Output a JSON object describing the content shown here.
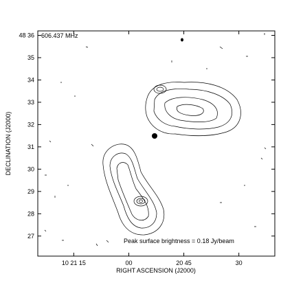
{
  "chart_data": {
    "type": "contour",
    "title": "606.437 MHz",
    "x_label": "RIGHT ASCENSION (J2000)",
    "y_label": "DECLINATION (J2000)",
    "annotation": "Peak surface brightness = 0.18 Jy/beam",
    "xlim": [
      84.8,
      20.2
    ],
    "xticks": [
      {
        "value": 75,
        "label": "10 21 15"
      },
      {
        "value": 60,
        "label": "00"
      },
      {
        "value": 45,
        "label": "20 45"
      },
      30
    ],
    "ylim": [
      26.1,
      36.2
    ],
    "yticks": [
      {
        "value": 36,
        "label": "48 36"
      },
      35,
      34,
      33,
      32,
      31,
      30,
      29,
      28,
      27
    ]
  }
}
